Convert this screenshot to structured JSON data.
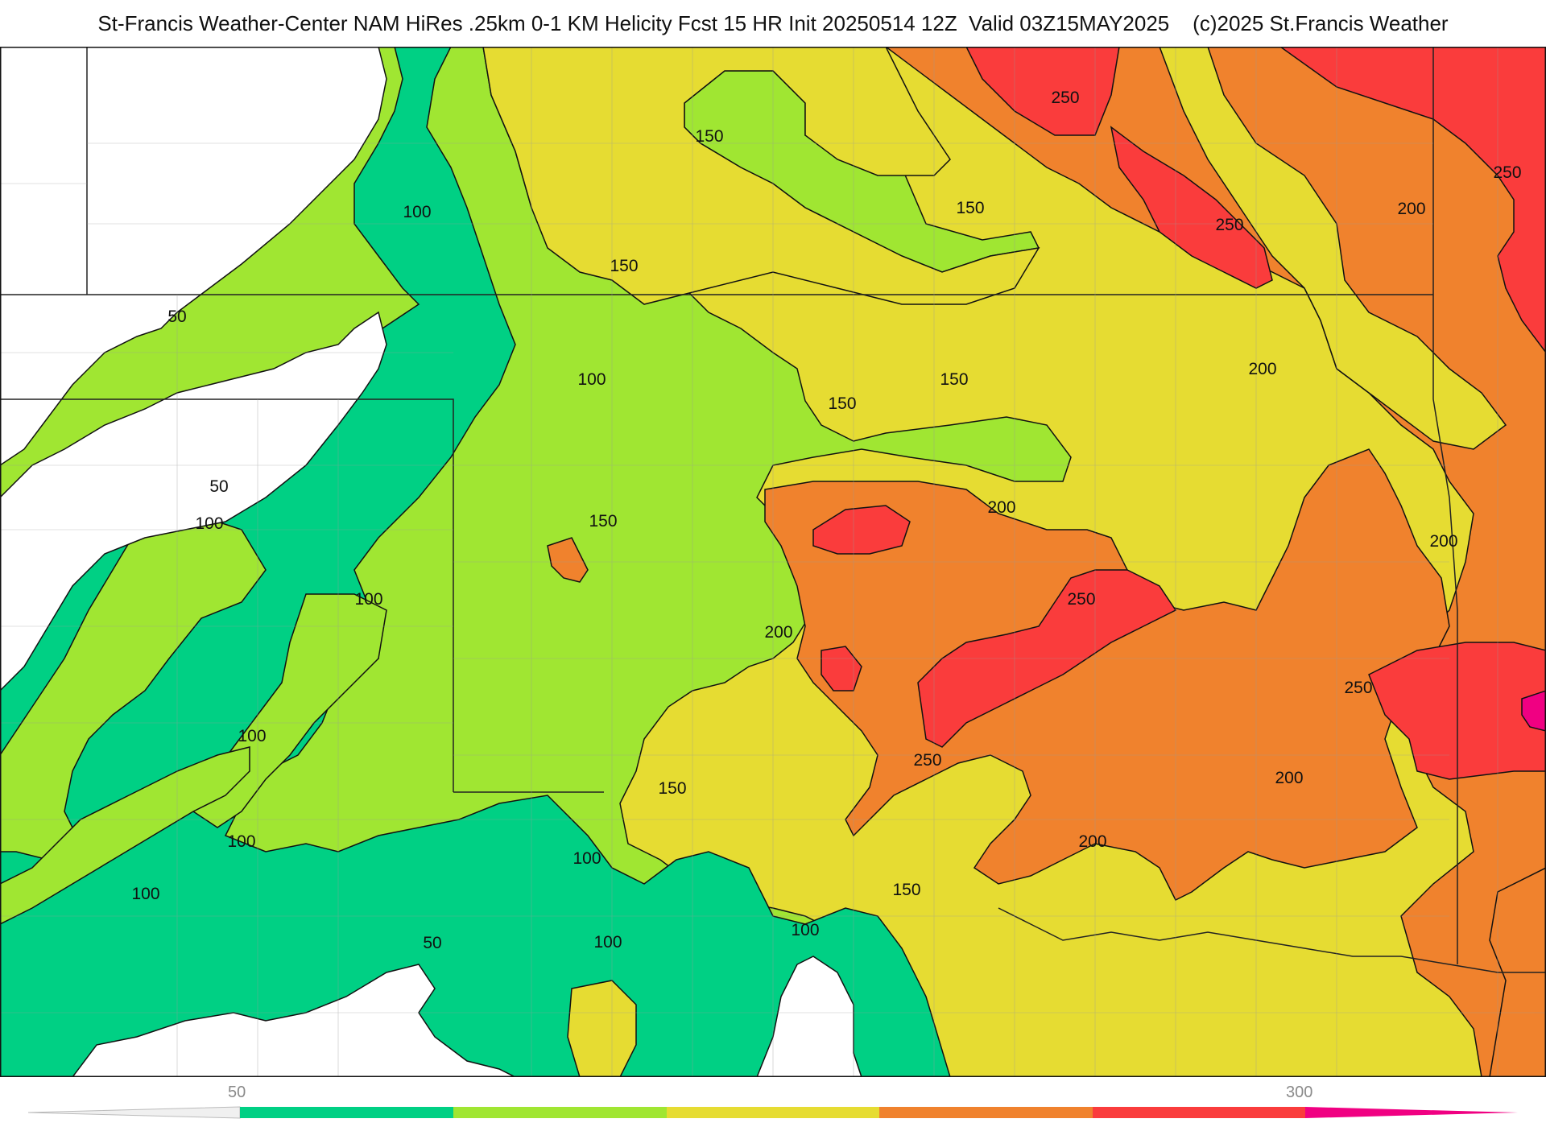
{
  "header": {
    "title": "St-Francis Weather-Center NAM HiRes .25km 0-1 KM Helicity Fcst 15 HR Init 20250514 12Z  Valid 03Z15MAY2025",
    "credit": "(c)2025 St.Francis Weather"
  },
  "map": {
    "contour_labels": [
      {
        "id": "l1",
        "text": "250"
      },
      {
        "id": "l2",
        "text": "250"
      },
      {
        "id": "l3",
        "text": "250"
      },
      {
        "id": "l4",
        "text": "150"
      },
      {
        "id": "l5",
        "text": "150"
      },
      {
        "id": "l6",
        "text": "200"
      },
      {
        "id": "l7",
        "text": "100"
      },
      {
        "id": "l8",
        "text": "150"
      },
      {
        "id": "l9",
        "text": "50"
      },
      {
        "id": "l10",
        "text": "200"
      },
      {
        "id": "l11",
        "text": "100"
      },
      {
        "id": "l12",
        "text": "150"
      },
      {
        "id": "l13",
        "text": "150"
      },
      {
        "id": "l14",
        "text": "50"
      },
      {
        "id": "l15",
        "text": "100"
      },
      {
        "id": "l16",
        "text": "150"
      },
      {
        "id": "l17",
        "text": "200"
      },
      {
        "id": "l18",
        "text": "200"
      },
      {
        "id": "l19",
        "text": "100"
      },
      {
        "id": "l20",
        "text": "250"
      },
      {
        "id": "l21",
        "text": "200"
      },
      {
        "id": "l22",
        "text": "250"
      },
      {
        "id": "l23",
        "text": "100"
      },
      {
        "id": "l24",
        "text": "250"
      },
      {
        "id": "l25",
        "text": "150"
      },
      {
        "id": "l26",
        "text": "200"
      },
      {
        "id": "l27",
        "text": "100"
      },
      {
        "id": "l28",
        "text": "100"
      },
      {
        "id": "l29",
        "text": "200"
      },
      {
        "id": "l30",
        "text": "100"
      },
      {
        "id": "l31",
        "text": "150"
      },
      {
        "id": "l32",
        "text": "50"
      },
      {
        "id": "l33",
        "text": "100"
      },
      {
        "id": "l34",
        "text": "100"
      }
    ]
  },
  "colorbar": {
    "tick_labels": [
      "50",
      "300"
    ],
    "colors": [
      "#f0f0f0",
      "#00d084",
      "#a0e632",
      "#e6dc32",
      "#f0822d",
      "#fa3c3c",
      "#f00082"
    ]
  }
}
